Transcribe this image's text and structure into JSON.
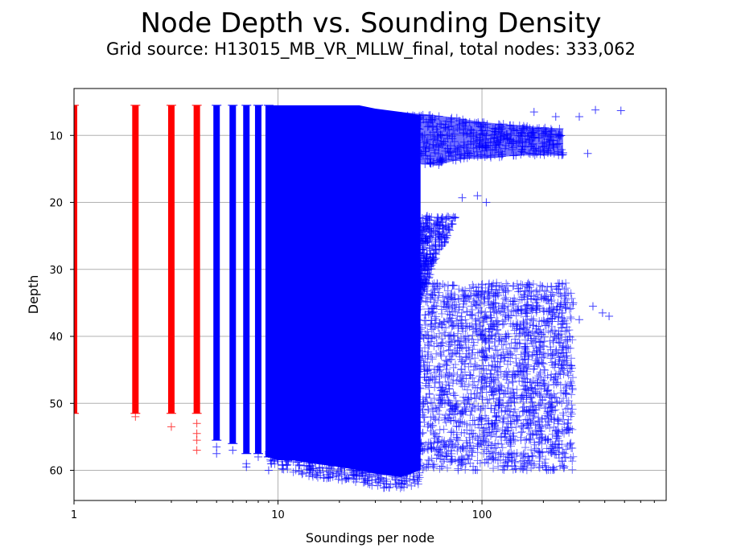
{
  "chart_data": {
    "type": "scatter",
    "title": "Node Depth vs. Sounding Density",
    "subtitle": "Grid source: H13015_MB_VR_MLLW_final, total nodes: 333,062",
    "xlabel": "Soundings per node",
    "ylabel": "Depth",
    "x_scale": "log",
    "xlim": [
      1,
      800
    ],
    "ylim": [
      64.5,
      3
    ],
    "y_inverted": true,
    "grid": true,
    "marker": "+",
    "x_ticks": [
      1,
      10,
      100
    ],
    "x_tick_labels": [
      "1",
      "10",
      "100"
    ],
    "y_ticks": [
      10,
      20,
      30,
      40,
      50,
      60
    ],
    "y_tick_labels": [
      "10",
      "20",
      "30",
      "40",
      "50",
      "60"
    ],
    "series": [
      {
        "color": "#ff0000",
        "columns": [
          {
            "x": 1,
            "depth_range": [
              5.5,
              51.5
            ],
            "outliers": []
          },
          {
            "x": 2,
            "depth_range": [
              5.5,
              51.5
            ],
            "outliers": [
              52
            ]
          },
          {
            "x": 3,
            "depth_range": [
              5.5,
              51.5
            ],
            "outliers": [
              53.5
            ]
          },
          {
            "x": 4,
            "depth_range": [
              5.5,
              51.5
            ],
            "outliers": [
              53,
              54.5,
              55.5,
              57
            ]
          }
        ]
      },
      {
        "color": "#0000ff",
        "columns": [
          {
            "x": 5,
            "depth_range": [
              5.5,
              55.5
            ],
            "outliers": [
              56.5,
              57.5
            ]
          },
          {
            "x": 6,
            "depth_range": [
              5.5,
              56
            ],
            "outliers": [
              57
            ]
          },
          {
            "x": 7,
            "depth_range": [
              5.5,
              57.5
            ],
            "outliers": [
              59,
              59.5
            ]
          },
          {
            "x": 8,
            "depth_range": [
              5.5,
              57.5
            ],
            "outliers": [
              58
            ]
          },
          {
            "x": 9,
            "depth_range": [
              5.5,
              58
            ],
            "outliers": [
              60
            ]
          }
        ],
        "envelope": [
          {
            "x": 9,
            "top": 5.5,
            "bottom": 58
          },
          {
            "x": 10,
            "top": 5.5,
            "bottom": 58.5
          },
          {
            "x": 12,
            "top": 5.5,
            "bottom": 58.5
          },
          {
            "x": 15,
            "top": 5.5,
            "bottom": 59
          },
          {
            "x": 20,
            "top": 5.5,
            "bottom": 59.5
          },
          {
            "x": 25,
            "top": 5.5,
            "bottom": 60
          },
          {
            "x": 30,
            "top": 6,
            "bottom": 60.5
          },
          {
            "x": 40,
            "top": 6.5,
            "bottom": 61
          },
          {
            "x": 50,
            "top": 7,
            "bottom": 60
          }
        ],
        "upper_band": [
          {
            "x": 40,
            "top": 6.5,
            "bottom": 14
          },
          {
            "x": 60,
            "top": 7,
            "bottom": 14.5
          },
          {
            "x": 80,
            "top": 7.5,
            "bottom": 13.5
          },
          {
            "x": 100,
            "top": 8,
            "bottom": 13.5
          },
          {
            "x": 150,
            "top": 8.5,
            "bottom": 13
          },
          {
            "x": 250,
            "top": 9,
            "bottom": 13
          }
        ],
        "lower_cloud": {
          "x_range": [
            30,
            280
          ],
          "depth_range": [
            32,
            60
          ]
        },
        "sparse_points": [
          {
            "x": 180,
            "y": 6.5
          },
          {
            "x": 230,
            "y": 7.2
          },
          {
            "x": 300,
            "y": 7.2
          },
          {
            "x": 360,
            "y": 6.2
          },
          {
            "x": 480,
            "y": 6.3
          },
          {
            "x": 200,
            "y": 12.5
          },
          {
            "x": 250,
            "y": 12.6
          },
          {
            "x": 330,
            "y": 12.7
          },
          {
            "x": 95,
            "y": 19
          },
          {
            "x": 105,
            "y": 20
          },
          {
            "x": 80,
            "y": 19.3
          },
          {
            "x": 350,
            "y": 35.5
          },
          {
            "x": 390,
            "y": 36.5
          },
          {
            "x": 420,
            "y": 37
          },
          {
            "x": 300,
            "y": 37.5
          },
          {
            "x": 280,
            "y": 35
          },
          {
            "x": 240,
            "y": 43.5
          },
          {
            "x": 230,
            "y": 54
          }
        ]
      }
    ]
  }
}
